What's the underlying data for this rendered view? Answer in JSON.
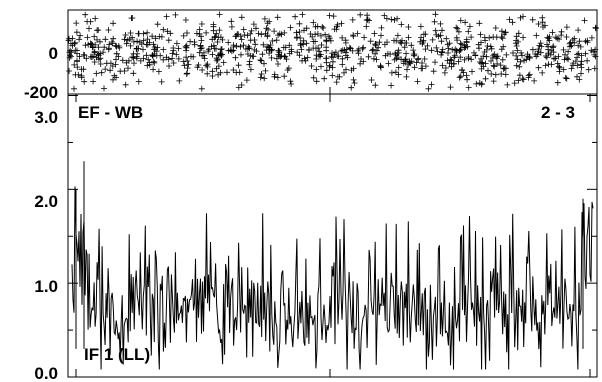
{
  "chart_data": [
    {
      "type": "scatter",
      "panel": "phase",
      "xlim": [
        0,
        260
      ],
      "ylim": [
        -200,
        200
      ],
      "yticks": [
        {
          "value": 0,
          "label": "0"
        },
        {
          "value": -200,
          "label": "-200"
        }
      ],
      "marker": "plus",
      "series": [
        {
          "points_summary": "Dense cloud of '+' markers spread roughly uniformly between about -150 and +180 across the full x range, concentrated around 0",
          "count_estimate": 900,
          "y_center": 0,
          "y_spread": 160
        }
      ]
    },
    {
      "type": "line",
      "panel": "amplitude",
      "labels": {
        "top_left": "EF - WB",
        "top_right": "2 - 3",
        "bottom_left": "IF 1 (LL)"
      },
      "xlim": [
        0,
        260
      ],
      "ylim": [
        0,
        3.0
      ],
      "yticks": [
        {
          "value": 3.0,
          "label": "3.0"
        },
        {
          "value": 2.0,
          "label": "2.0"
        },
        {
          "value": 1.0,
          "label": "1.0"
        },
        {
          "value": 0.0,
          "label": "0.0"
        }
      ],
      "series": [
        {
          "summary": "Noisy amplitude trace fluctuating mostly between 0.2 and 1.3 with spikes up to ~2.3, higher at both edges",
          "points": 520,
          "mean": 0.7,
          "edge_peaks": [
            {
              "x": 2,
              "y": 2.0
            },
            {
              "x": 6,
              "y": 2.3
            },
            {
              "x": 255,
              "y": 1.9
            }
          ]
        }
      ]
    }
  ]
}
